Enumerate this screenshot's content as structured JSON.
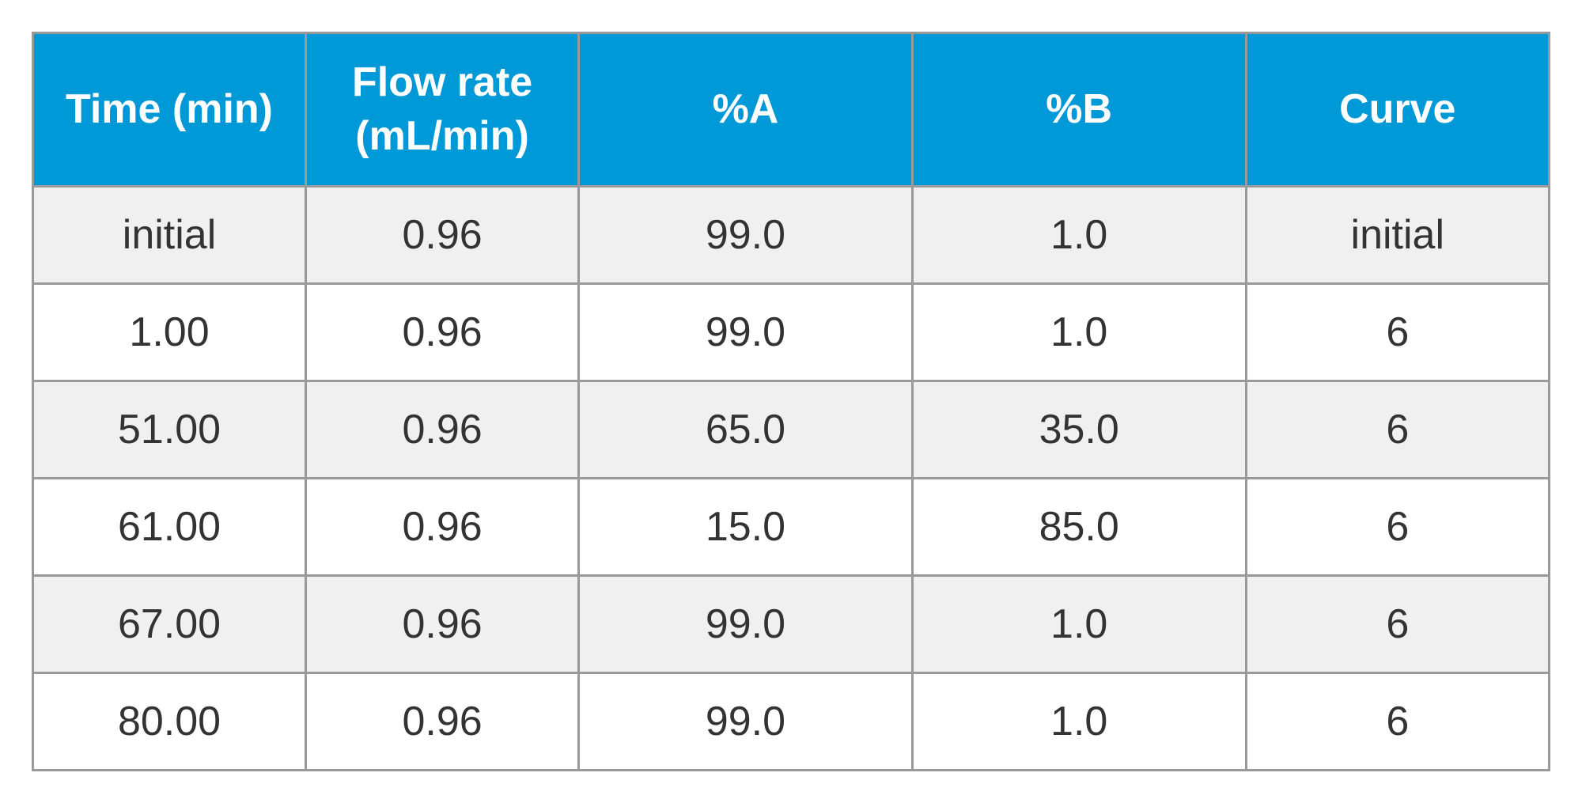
{
  "table": {
    "type": "table",
    "header_bg_color": "#0099d8",
    "header_text_color": "#ffffff",
    "row_odd_bg_color": "#f0f0f0",
    "row_even_bg_color": "#ffffff",
    "border_color": "#999999",
    "text_color": "#333333",
    "header_fontsize": 52,
    "cell_fontsize": 52,
    "columns": [
      {
        "label": "Time\n(min)",
        "width": "18%"
      },
      {
        "label": "Flow rate\n(mL/min)",
        "width": "18%"
      },
      {
        "label": "%A",
        "width": "22%"
      },
      {
        "label": "%B",
        "width": "22%"
      },
      {
        "label": "Curve",
        "width": "20%"
      }
    ],
    "headers": {
      "time": "Time (min)",
      "flow": "Flow rate (mL/min)",
      "pct_a": "%A",
      "pct_b": "%B",
      "curve": "Curve"
    },
    "rows": [
      {
        "time": "initial",
        "flow": "0.96",
        "pct_a": "99.0",
        "pct_b": "1.0",
        "curve": "initial"
      },
      {
        "time": "1.00",
        "flow": "0.96",
        "pct_a": "99.0",
        "pct_b": "1.0",
        "curve": "6"
      },
      {
        "time": "51.00",
        "flow": "0.96",
        "pct_a": "65.0",
        "pct_b": "35.0",
        "curve": "6"
      },
      {
        "time": "61.00",
        "flow": "0.96",
        "pct_a": "15.0",
        "pct_b": "85.0",
        "curve": "6"
      },
      {
        "time": "67.00",
        "flow": "0.96",
        "pct_a": "99.0",
        "pct_b": "1.0",
        "curve": "6"
      },
      {
        "time": "80.00",
        "flow": "0.96",
        "pct_a": "99.0",
        "pct_b": "1.0",
        "curve": "6"
      }
    ]
  }
}
